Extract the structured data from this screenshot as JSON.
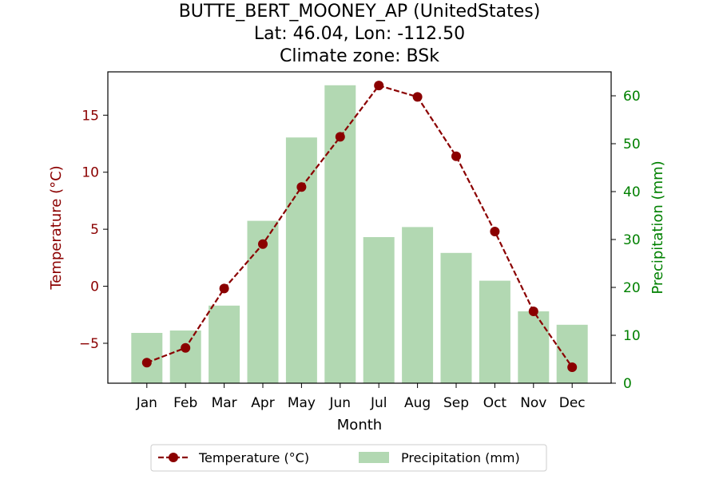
{
  "chart_data": {
    "type": "bar+line",
    "title": [
      "BUTTE_BERT_MOONEY_AP (UnitedStates)",
      "Lat: 46.04, Lon: -112.50",
      "Climate zone: BSk"
    ],
    "xlabel": "Month",
    "categories": [
      "Jan",
      "Feb",
      "Mar",
      "Apr",
      "May",
      "Jun",
      "Jul",
      "Aug",
      "Sep",
      "Oct",
      "Nov",
      "Dec"
    ],
    "temperature": {
      "label": "Temperature (°C)",
      "axis_label": "Temperature (°C)",
      "values": [
        -6.7,
        -5.4,
        -0.2,
        3.7,
        8.7,
        13.1,
        17.6,
        16.6,
        11.4,
        4.8,
        -2.2,
        -7.1
      ],
      "ylim": [
        -8.5,
        18.8
      ],
      "ticks": [
        -5,
        0,
        5,
        10,
        15
      ],
      "tick_labels": [
        "−5",
        "0",
        "5",
        "10",
        "15"
      ],
      "color": "#8b0000",
      "style": "dashed line with circle markers"
    },
    "precipitation": {
      "label": "Precipitation (mm)",
      "axis_label": "Precipitation (mm)",
      "values": [
        10.5,
        11.0,
        16.2,
        33.9,
        51.3,
        62.2,
        30.5,
        32.6,
        27.2,
        21.4,
        15.0,
        12.2
      ],
      "ylim": [
        0,
        65
      ],
      "ticks": [
        0,
        10,
        20,
        30,
        40,
        50,
        60
      ],
      "tick_labels": [
        "0",
        "10",
        "20",
        "30",
        "40",
        "50",
        "60"
      ],
      "color": "#b2d8b2",
      "axis_color": "#008000"
    },
    "legend_placement": "bottom-center",
    "grid": false
  }
}
